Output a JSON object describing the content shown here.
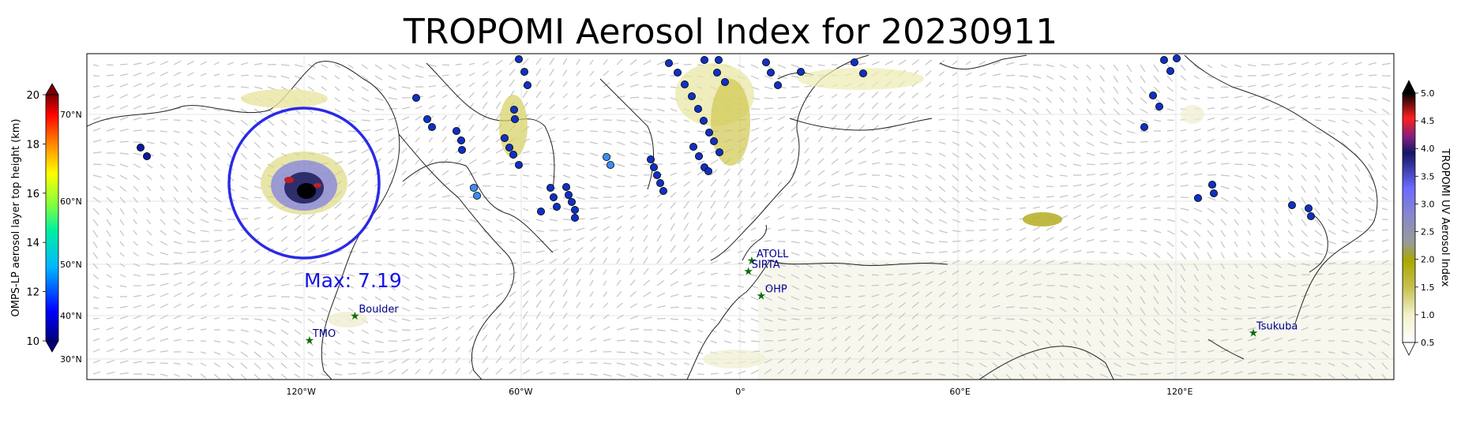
{
  "title": "TROPOMI Aerosol Index for 20230911",
  "map": {
    "lon_ticks": [
      "120°W",
      "60°W",
      "0°",
      "60°E",
      "120°E"
    ],
    "lat_ticks": [
      "70°N",
      "60°N",
      "50°N",
      "40°N",
      "30°N"
    ],
    "max_label": "Max: 7.19",
    "sites": [
      {
        "name": "ATOLL",
        "lon": 3.1,
        "lat": 50.6
      },
      {
        "name": "SIRTA",
        "lon": 2.2,
        "lat": 48.7
      },
      {
        "name": "OHP",
        "lon": 5.7,
        "lat": 43.9
      },
      {
        "name": "Boulder",
        "lon": -105.3,
        "lat": 40.0
      },
      {
        "name": "TMO",
        "lon": -117.7,
        "lat": 34.4
      },
      {
        "name": "Tsukuba",
        "lon": 140.1,
        "lat": 36.1
      }
    ]
  },
  "left_colorbar": {
    "label": "OMPS-LP aerosol layer top height (km)",
    "ticks": [
      "20",
      "18",
      "16",
      "14",
      "12",
      "10"
    ]
  },
  "right_colorbar": {
    "label": "TROPOMI UV Aerosol Index",
    "ticks": [
      "5.0",
      "4.5",
      "4.0",
      "3.5",
      "3.0",
      "2.5",
      "2.0",
      "1.5",
      "1.0",
      "0.5"
    ]
  },
  "colors": {
    "circle": "#2a2ae6",
    "max_label": "#1515e6",
    "site_label": "#00008b",
    "site_marker": "#0b6b0b"
  }
}
